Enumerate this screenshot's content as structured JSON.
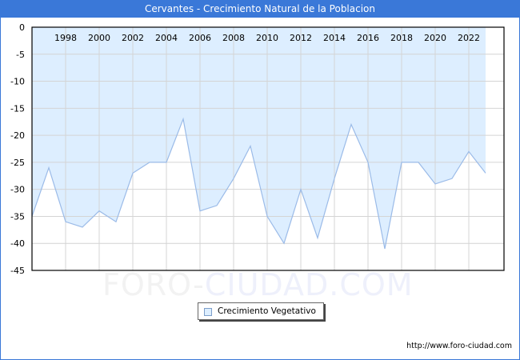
{
  "title": "Cervantes - Crecimiento Natural de la Poblacion",
  "watermark": {
    "part1": "FORO-",
    "part2": "CIUDAD.COM"
  },
  "legend": {
    "label": "Crecimiento Vegetativo"
  },
  "credit": "http://www.foro-ciudad.com",
  "colors": {
    "title_bar": "#3a78d8",
    "fill": "#ddeeff",
    "line": "#9bbbe8",
    "grid": "#d4d4d4"
  },
  "chart_data": {
    "type": "area",
    "title": "Cervantes - Crecimiento Natural de la Poblacion",
    "xlabel": "",
    "ylabel": "",
    "x": [
      1996,
      1997,
      1998,
      1999,
      2000,
      2001,
      2002,
      2003,
      2004,
      2005,
      2006,
      2007,
      2008,
      2009,
      2010,
      2011,
      2012,
      2013,
      2014,
      2015,
      2016,
      2017,
      2018,
      2019,
      2020,
      2021,
      2022,
      2023
    ],
    "series": [
      {
        "name": "Crecimiento Vegetativo",
        "values": [
          -35,
          -26,
          -36,
          -37,
          -34,
          -36,
          -27,
          -25,
          -25,
          -17,
          -34,
          -33,
          -28,
          -22,
          -35,
          -40,
          -30,
          -39,
          -28,
          -18,
          -25,
          -41,
          -25,
          -25,
          -29,
          -28,
          -23,
          -27
        ]
      }
    ],
    "x_tick_labels": [
      "1998",
      "2000",
      "2002",
      "2004",
      "2006",
      "2008",
      "2010",
      "2012",
      "2014",
      "2016",
      "2018",
      "2020",
      "2022"
    ],
    "y_tick_labels": [
      "0",
      "-5",
      "-10",
      "-15",
      "-20",
      "-25",
      "-30",
      "-35",
      "-40",
      "-45"
    ],
    "ylim": [
      -45,
      0
    ],
    "grid": true,
    "legend_position": "bottom-center"
  }
}
